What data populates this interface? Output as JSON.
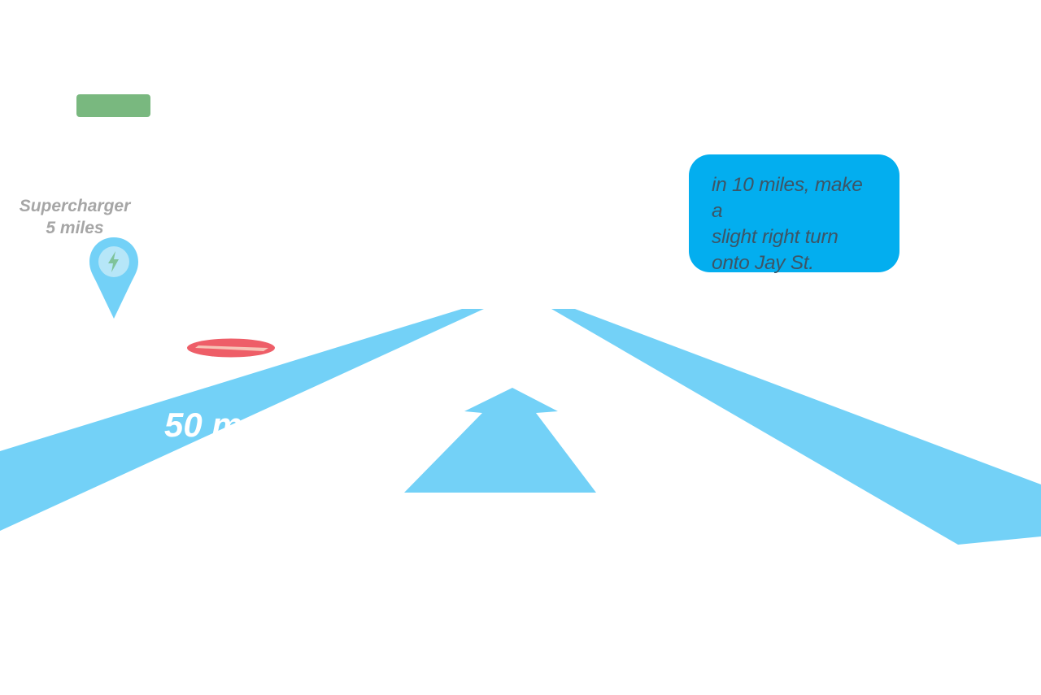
{
  "colors": {
    "lane": "#73d1f7",
    "battery": "#79b87f",
    "bubble": "#03aeef",
    "no_entry": "#ee5e68",
    "no_entry_stripe": "#f7c3b6",
    "label_gray": "#a6a6a6",
    "pin_fill": "#73d1f7",
    "bolt": "#7fc39a"
  },
  "battery": {
    "icon": "battery-level-bar"
  },
  "supercharger": {
    "title": "Supercharger",
    "distance": "5 miles",
    "icon": "lightning-bolt-icon"
  },
  "road": {
    "speed_label": "50 mph",
    "no_entry_icon": "no-entry-icon",
    "arrow_icon": "straight-ahead-arrow-icon"
  },
  "navigation": {
    "instruction_line1": "in 10 miles, make a",
    "instruction_line2": "slight right turn",
    "instruction_line3": "onto Jay St."
  }
}
